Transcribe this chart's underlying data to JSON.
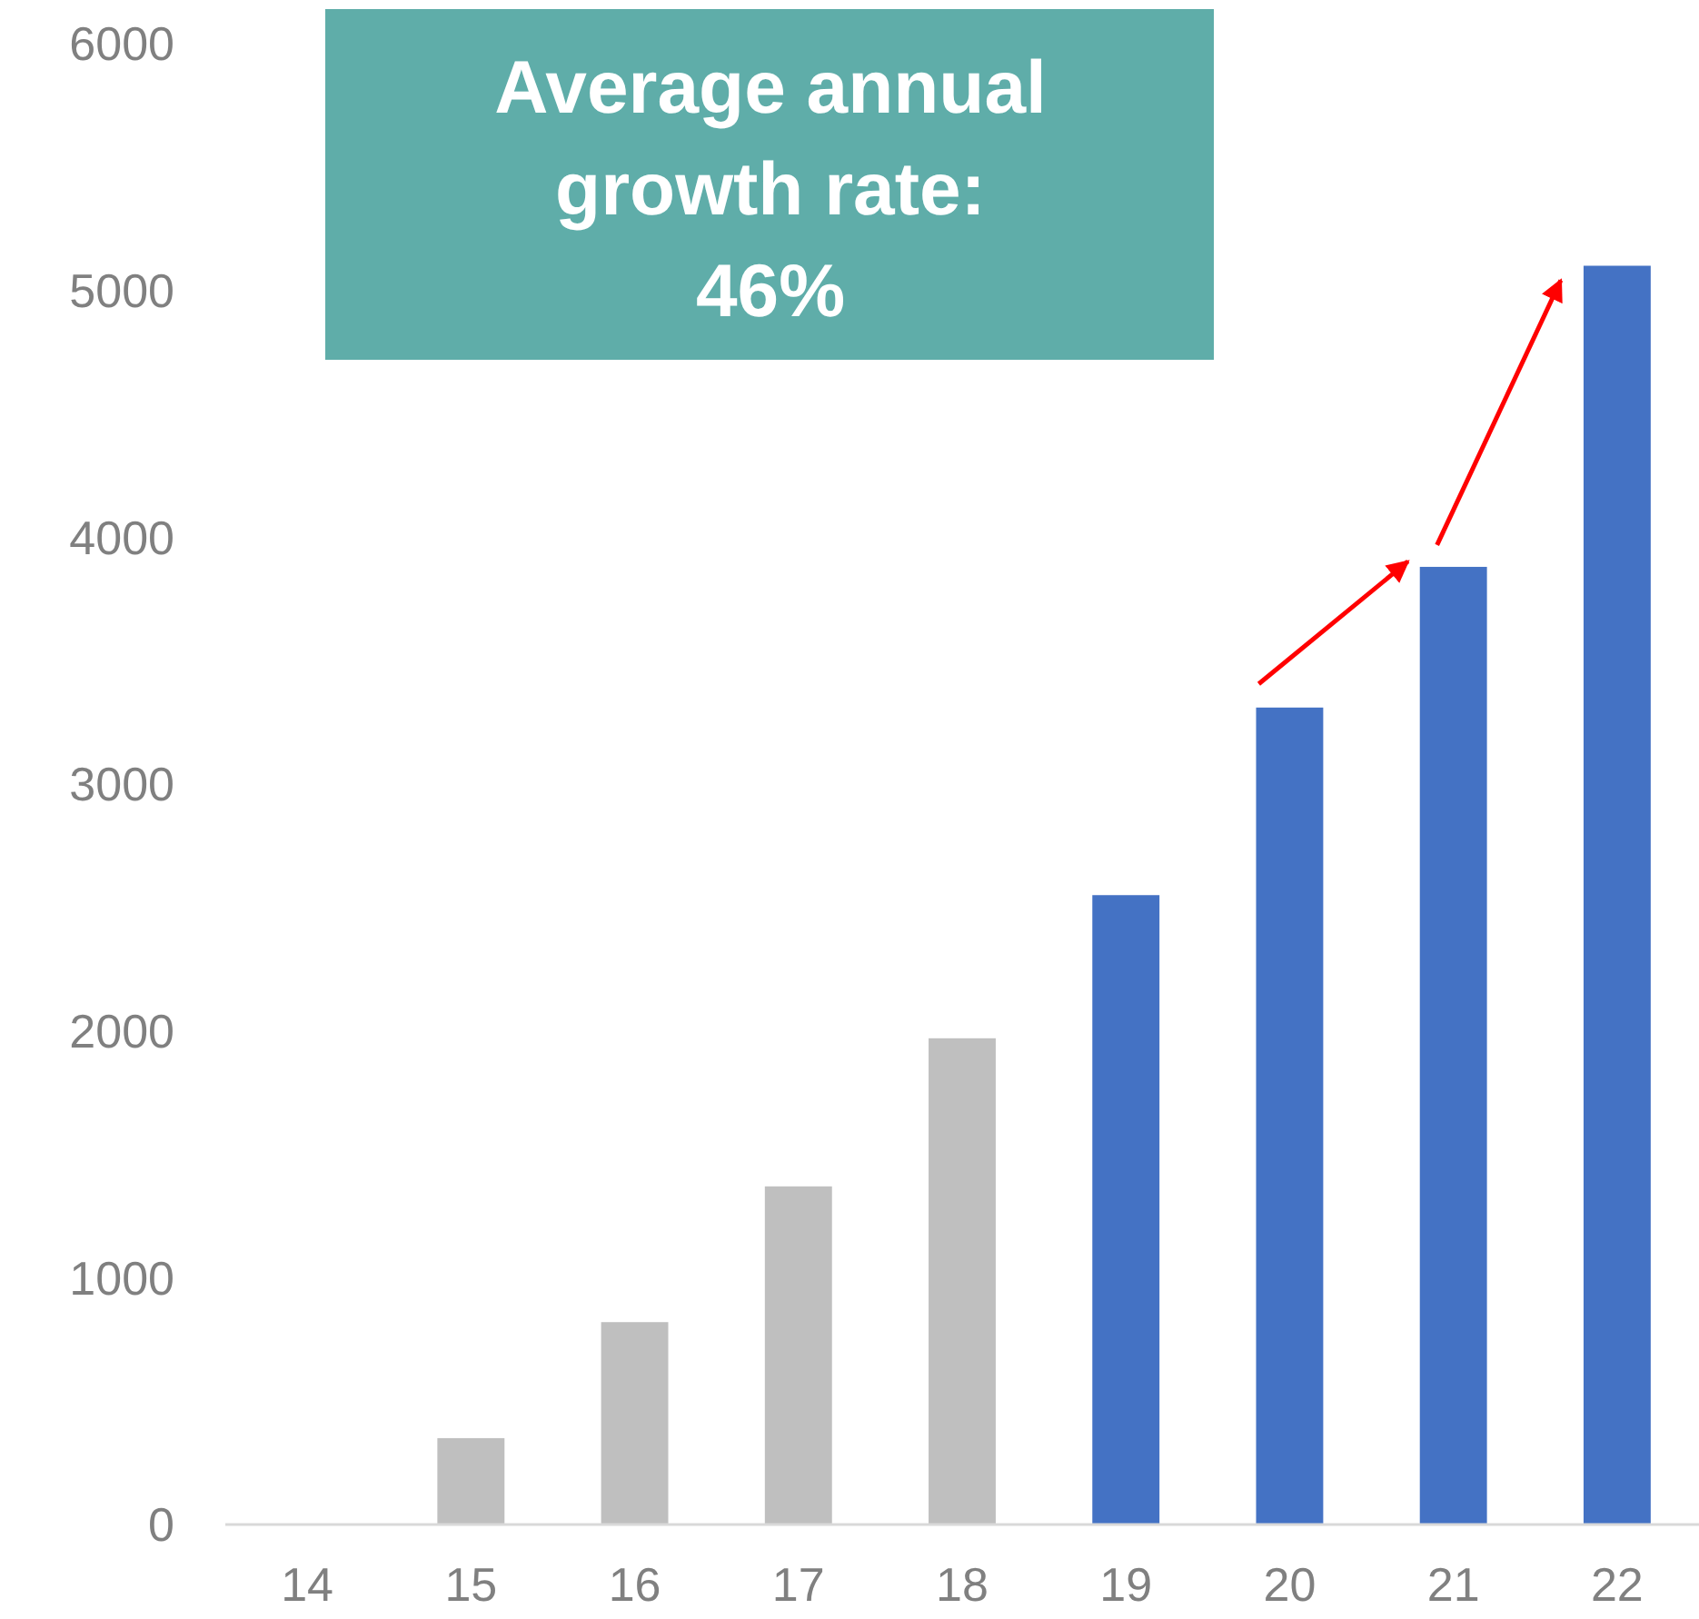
{
  "chart_data": {
    "type": "bar",
    "categories": [
      "14",
      "15",
      "16",
      "17",
      "18",
      "19",
      "20",
      "21",
      "22"
    ],
    "values": [
      0,
      350,
      820,
      1370,
      1970,
      2550,
      3310,
      3880,
      5100
    ],
    "colors": [
      "#bfbfbf",
      "#bfbfbf",
      "#bfbfbf",
      "#bfbfbf",
      "#bfbfbf",
      "#4472c4",
      "#4472c4",
      "#4472c4",
      "#4472c4"
    ],
    "ylim": [
      0,
      6000
    ],
    "yticks": [
      0,
      1000,
      2000,
      3000,
      4000,
      5000,
      6000
    ],
    "grid": false,
    "annotations": [
      "Average annual growth rate: 46%"
    ]
  }
}
